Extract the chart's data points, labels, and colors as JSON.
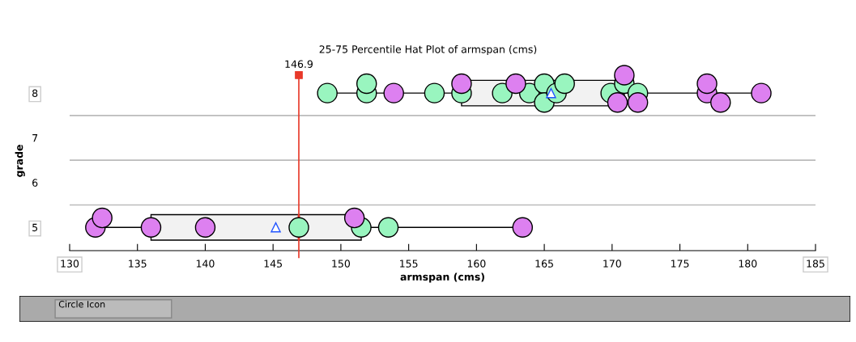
{
  "chart_data": {
    "type": "box",
    "orientation": "horizontal",
    "title": "25-75 Percentile Hat Plot of armspan (cms)",
    "xlabel": "armspan (cms)",
    "ylabel": "grade",
    "categories": [
      "8",
      "7",
      "6",
      "5"
    ],
    "boxes": [
      {
        "low": 149.0,
        "q1": 158.9,
        "median": 165.0,
        "q3": 170.9,
        "high": 181.0,
        "mean": 165.5
      },
      null,
      null,
      {
        "low": 131.9,
        "q1": 136.0,
        "median": 146.9,
        "q3": 151.5,
        "high": 163.4,
        "mean": 145.2
      }
    ],
    "series": [
      {
        "type": "scatter",
        "color": "#99f5bf",
        "x": [
          "5",
          "5",
          "5",
          "8",
          "8",
          "8",
          "8",
          "8",
          "8",
          "8",
          "8",
          "8",
          "8",
          "8",
          "8",
          "8",
          "8"
        ],
        "values": [
          146.9,
          151.5,
          153.5,
          149.0,
          151.9,
          151.9,
          156.9,
          158.9,
          161.9,
          163.9,
          165.0,
          165.0,
          165.9,
          166.5,
          169.9,
          170.9,
          171.9
        ]
      },
      {
        "type": "scatter",
        "color": "#dd80f0",
        "x": [
          "5",
          "5",
          "5",
          "5",
          "5",
          "5",
          "8",
          "8",
          "8",
          "8",
          "8",
          "8",
          "8",
          "8",
          "8",
          "8"
        ],
        "values": [
          131.9,
          132.4,
          136.0,
          140.0,
          151.0,
          163.4,
          153.9,
          158.9,
          162.9,
          170.4,
          170.9,
          171.9,
          177.0,
          177.0,
          178.0,
          181.0
        ]
      }
    ],
    "xlim": [
      130,
      185
    ],
    "xticks": [
      130,
      135,
      140,
      145,
      150,
      155,
      160,
      165,
      170,
      175,
      180,
      185
    ],
    "ref_lines": [
      {
        "axis": "x",
        "value": 146.9,
        "label": "146.9",
        "color": "#e8392a"
      }
    ],
    "grid": "y",
    "marker": "circle",
    "annotations": [
      "Circle Icon"
    ]
  }
}
